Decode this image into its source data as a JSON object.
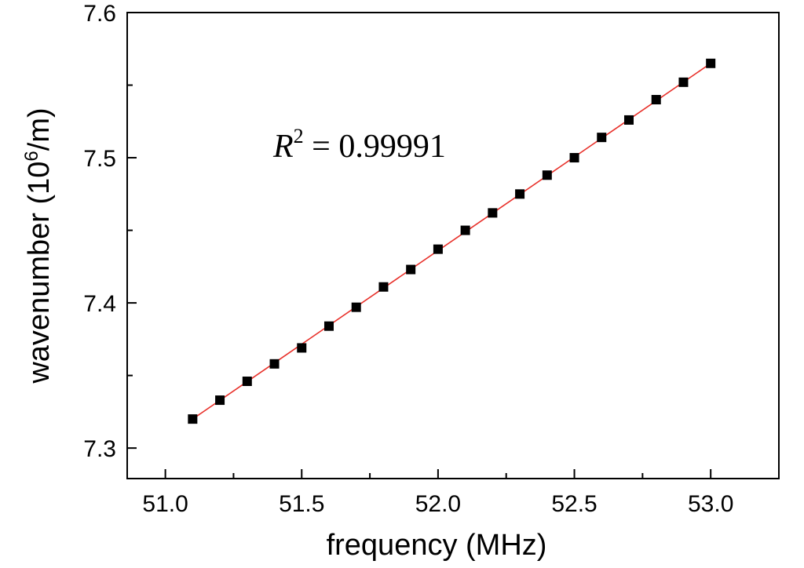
{
  "chart_data": {
    "type": "scatter",
    "xlabel": "frequency (MHz)",
    "ylabel_main": "wavenumber (10",
    "ylabel_sup": "6",
    "ylabel_end": "/m)",
    "xlim": [
      50.86,
      53.25
    ],
    "ylim": [
      7.279,
      7.6
    ],
    "xticks": [
      51.0,
      51.5,
      52.0,
      52.5,
      53.0
    ],
    "xtick_labels": [
      "51.0",
      "51.5",
      "52.0",
      "52.5",
      "53.0"
    ],
    "yticks": [
      7.3,
      7.4,
      7.5,
      7.6
    ],
    "ytick_labels": [
      "7.3",
      "7.4",
      "7.5",
      "7.6"
    ],
    "annotation": {
      "var": "R",
      "sup": "2",
      "rest": " = 0.99991"
    },
    "series": [
      {
        "marker": "square",
        "color": "#000000",
        "x": [
          51.1,
          51.2,
          51.3,
          51.4,
          51.5,
          51.6,
          51.7,
          51.8,
          51.9,
          52.0,
          52.1,
          52.2,
          52.3,
          52.4,
          52.5,
          52.6,
          52.7,
          52.8,
          52.9,
          53.0
        ],
        "y": [
          7.32,
          7.333,
          7.346,
          7.358,
          7.369,
          7.384,
          7.397,
          7.411,
          7.423,
          7.437,
          7.45,
          7.462,
          7.475,
          7.488,
          7.5,
          7.514,
          7.526,
          7.54,
          7.552,
          7.565
        ]
      }
    ],
    "fit_line": {
      "color": "#e8302a",
      "x": [
        51.1,
        53.0
      ],
      "y": [
        7.32,
        7.565
      ]
    }
  }
}
